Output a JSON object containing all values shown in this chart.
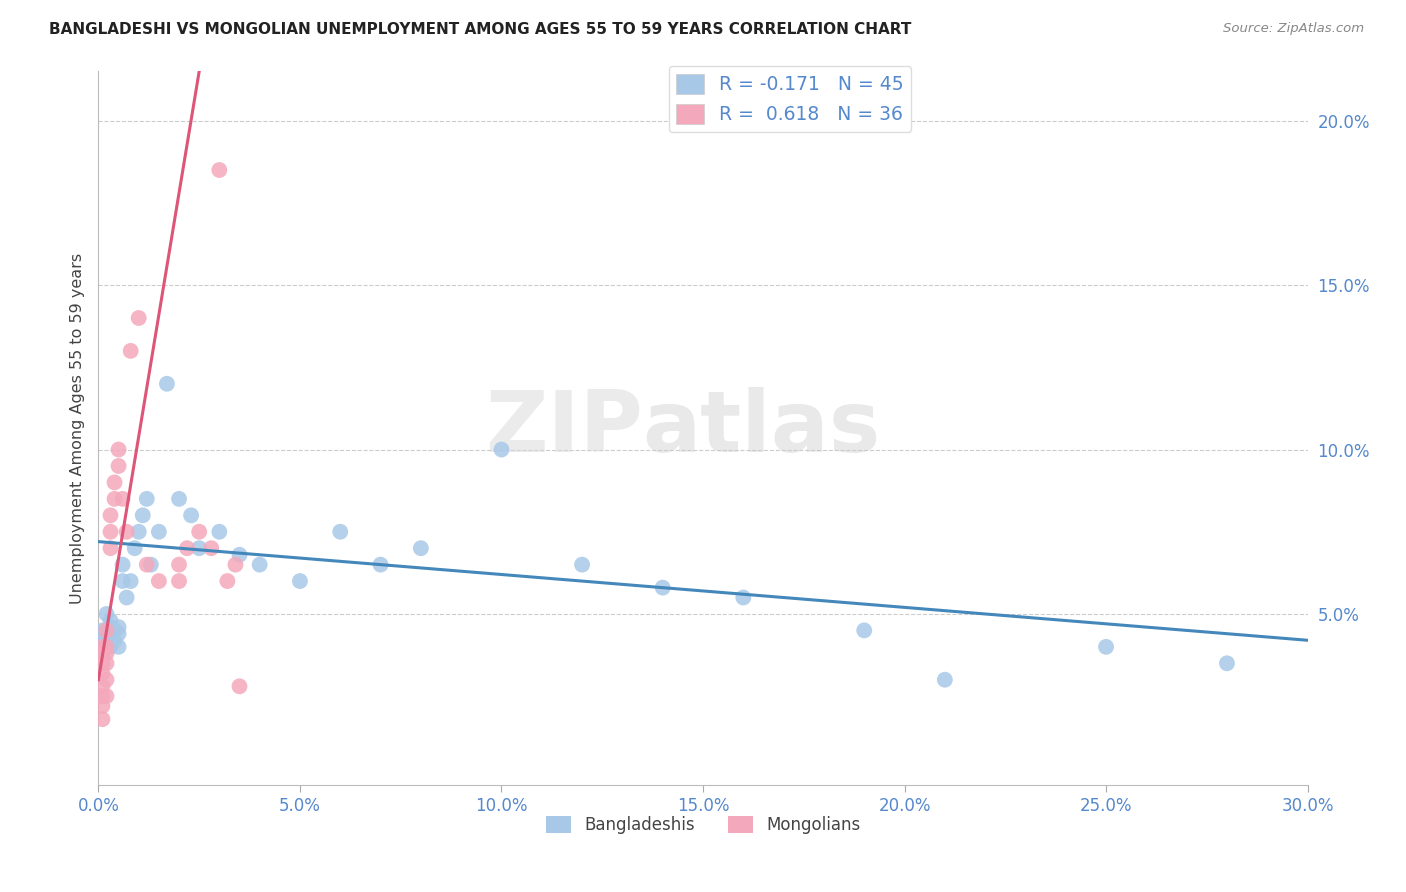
{
  "title": "BANGLADESHI VS MONGOLIAN UNEMPLOYMENT AMONG AGES 55 TO 59 YEARS CORRELATION CHART",
  "source": "Source: ZipAtlas.com",
  "ylabel": "Unemployment Among Ages 55 to 59 years",
  "xlim": [
    0.0,
    0.3
  ],
  "ylim": [
    -0.002,
    0.215
  ],
  "blue_color": "#a8c8e8",
  "pink_color": "#f4a8bb",
  "blue_line_color": "#4488bb",
  "pink_line_color": "#dd5577",
  "watermark_zip": "ZIP",
  "watermark_atlas": "atlas",
  "R_blue": -0.171,
  "N_blue": 45,
  "R_pink": 0.618,
  "N_pink": 36,
  "legend_label_blue": "Bangladeshis",
  "legend_label_pink": "Mongolians",
  "blue_scatter_x": [
    0.001,
    0.001,
    0.001,
    0.002,
    0.002,
    0.002,
    0.002,
    0.003,
    0.003,
    0.003,
    0.003,
    0.004,
    0.004,
    0.005,
    0.005,
    0.005,
    0.006,
    0.006,
    0.007,
    0.008,
    0.009,
    0.01,
    0.011,
    0.012,
    0.013,
    0.015,
    0.017,
    0.02,
    0.023,
    0.025,
    0.03,
    0.035,
    0.04,
    0.05,
    0.06,
    0.07,
    0.08,
    0.1,
    0.12,
    0.14,
    0.16,
    0.19,
    0.21,
    0.25,
    0.28
  ],
  "blue_scatter_y": [
    0.042,
    0.038,
    0.045,
    0.04,
    0.045,
    0.042,
    0.05,
    0.04,
    0.044,
    0.046,
    0.048,
    0.042,
    0.045,
    0.04,
    0.044,
    0.046,
    0.06,
    0.065,
    0.055,
    0.06,
    0.07,
    0.075,
    0.08,
    0.085,
    0.065,
    0.075,
    0.12,
    0.085,
    0.08,
    0.07,
    0.075,
    0.068,
    0.065,
    0.06,
    0.075,
    0.065,
    0.07,
    0.1,
    0.065,
    0.058,
    0.055,
    0.045,
    0.03,
    0.04,
    0.035
  ],
  "pink_scatter_x": [
    0.001,
    0.001,
    0.001,
    0.001,
    0.001,
    0.001,
    0.001,
    0.001,
    0.002,
    0.002,
    0.002,
    0.002,
    0.002,
    0.002,
    0.003,
    0.003,
    0.003,
    0.004,
    0.004,
    0.005,
    0.005,
    0.006,
    0.007,
    0.008,
    0.01,
    0.012,
    0.015,
    0.02,
    0.022,
    0.025,
    0.028,
    0.03,
    0.032,
    0.034,
    0.035,
    0.02
  ],
  "pink_scatter_y": [
    0.04,
    0.038,
    0.035,
    0.032,
    0.028,
    0.025,
    0.022,
    0.018,
    0.045,
    0.04,
    0.038,
    0.035,
    0.03,
    0.025,
    0.08,
    0.075,
    0.07,
    0.09,
    0.085,
    0.1,
    0.095,
    0.085,
    0.075,
    0.13,
    0.14,
    0.065,
    0.06,
    0.065,
    0.07,
    0.075,
    0.07,
    0.185,
    0.06,
    0.065,
    0.028,
    0.06
  ]
}
